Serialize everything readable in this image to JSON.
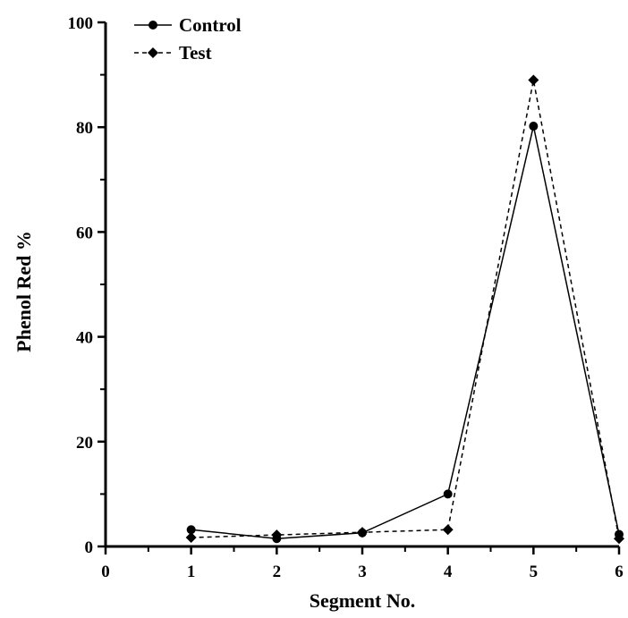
{
  "chart_data": {
    "type": "line",
    "title": "",
    "xlabel": "Segment No.",
    "ylabel": "Phenol Red %",
    "xlim": [
      0,
      6
    ],
    "ylim": [
      0,
      100
    ],
    "x_ticks": [
      "0",
      "1",
      "2",
      "3",
      "4",
      "5",
      "6"
    ],
    "y_ticks": [
      "0",
      "20",
      "40",
      "60",
      "80",
      "100"
    ],
    "grid": false,
    "legend_position": "top-left",
    "x": [
      1,
      2,
      3,
      4,
      5,
      6
    ],
    "series": [
      {
        "name": "Control",
        "values": [
          3.2,
          1.5,
          2.6,
          10.0,
          80.2,
          2.3
        ],
        "marker": "circle",
        "line": "solid",
        "color": "#000000"
      },
      {
        "name": "Test",
        "values": [
          1.7,
          2.2,
          2.7,
          3.2,
          89.0,
          1.5
        ],
        "marker": "diamond",
        "line": "dashed",
        "color": "#000000"
      }
    ]
  }
}
